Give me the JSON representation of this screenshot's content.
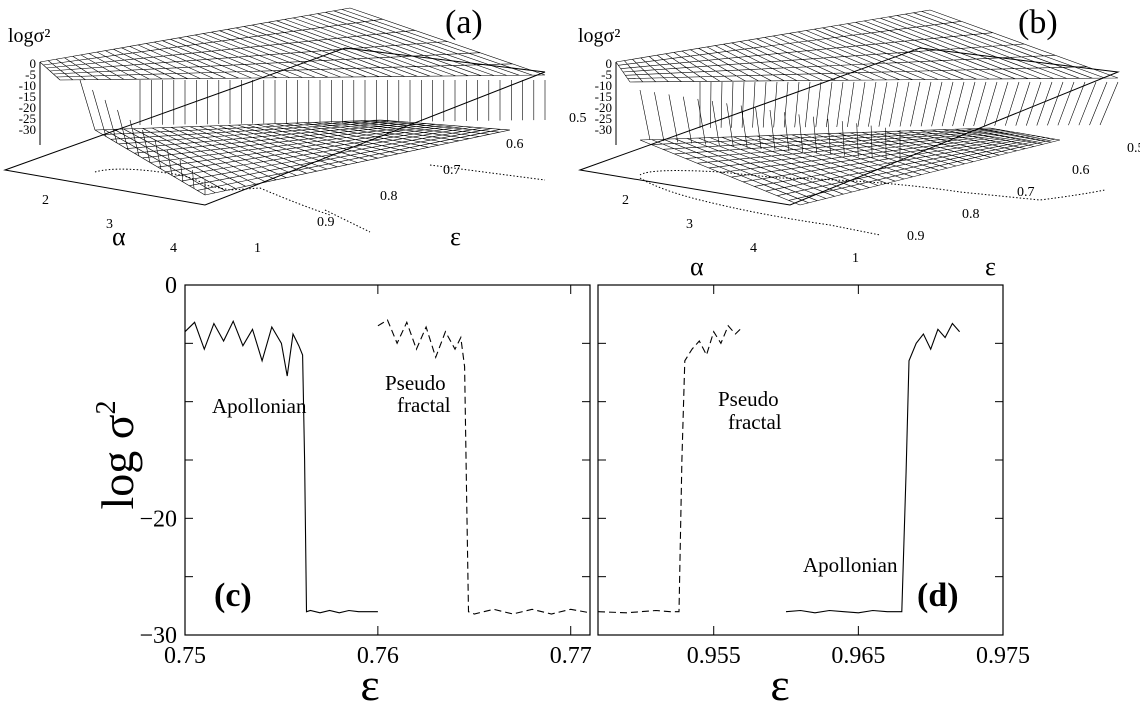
{
  "panels_3d": [
    {
      "panel_label": "(a)",
      "zlabel": "logσ²",
      "z_ticks": [
        "0",
        "-5",
        "-10",
        "-15",
        "-20",
        "-25",
        "-30"
      ],
      "alpha_label": "α",
      "alpha_ticks": [
        "2",
        "3",
        "4"
      ],
      "eps_label": "ε",
      "eps_ticks": [
        "1",
        "0.9",
        "0.8",
        "0.7",
        "0.6",
        "0.5"
      ]
    },
    {
      "panel_label": "(b)",
      "zlabel": "logσ²",
      "z_ticks": [
        "0",
        "-5",
        "-10",
        "-15",
        "-20",
        "-25",
        "-30"
      ],
      "alpha_label": "α",
      "alpha_ticks": [
        "2",
        "3",
        "4"
      ],
      "eps_label": "ε",
      "eps_ticks": [
        "1",
        "0.9",
        "0.8",
        "0.7",
        "0.6",
        "0.5"
      ]
    }
  ],
  "chart_data": [
    {
      "type": "surface",
      "panel": "(a)",
      "zlabel": "logσ²",
      "x_label": "ε",
      "x_range": [
        0.5,
        1.0
      ],
      "y_label": "α",
      "y_range": [
        1,
        4
      ],
      "z_range": [
        -30,
        0
      ],
      "description_values": {
        "sync_level": -28,
        "desync_level": -3
      }
    },
    {
      "type": "surface",
      "panel": "(b)",
      "zlabel": "logσ²",
      "x_label": "ε",
      "x_range": [
        0.5,
        1.0
      ],
      "y_label": "α",
      "y_range": [
        1,
        4
      ],
      "z_range": [
        -30,
        0
      ],
      "description_values": {
        "sync_level": -28,
        "desync_level": -3
      }
    },
    {
      "type": "line",
      "panel": "(c)",
      "ylabel": "log σ²",
      "xlabel": "ε",
      "xlim": [
        0.75,
        0.771
      ],
      "ylim": [
        -30,
        0
      ],
      "x_ticks": [
        "0.75",
        "0.76",
        "0.77"
      ],
      "y_ticks": [
        "0",
        "-20",
        "-30"
      ],
      "y_tick_values": [
        0,
        -20,
        -30
      ],
      "x_tick_values": [
        0.75,
        0.76,
        0.77
      ],
      "annotations": [
        "Apollonian",
        "Pseudo fractal"
      ],
      "series": [
        {
          "label": "Apollonian",
          "style": "solid",
          "x": [
            0.75,
            0.7505,
            0.751,
            0.7515,
            0.752,
            0.7525,
            0.753,
            0.7535,
            0.754,
            0.7545,
            0.755,
            0.7553,
            0.7556,
            0.7559,
            0.7561,
            0.7562,
            0.7563,
            0.7565,
            0.757,
            0.7575,
            0.758,
            0.7585,
            0.759,
            0.76
          ],
          "y": [
            -4.0,
            -3.2,
            -5.5,
            -3.3,
            -4.8,
            -3.1,
            -5.2,
            -3.8,
            -6.5,
            -3.6,
            -5.0,
            -7.8,
            -4.2,
            -5.2,
            -6.0,
            -15.0,
            -28.0,
            -27.9,
            -28.1,
            -27.9,
            -28.1,
            -27.9,
            -28.0,
            -28.0
          ]
        },
        {
          "label": "Pseudo fractal",
          "style": "dashed",
          "x": [
            0.76,
            0.7605,
            0.761,
            0.7615,
            0.762,
            0.7625,
            0.763,
            0.7635,
            0.764,
            0.7643,
            0.7645,
            0.7646,
            0.7647,
            0.765,
            0.766,
            0.767,
            0.768,
            0.769,
            0.77,
            0.771
          ],
          "y": [
            -3.5,
            -3.0,
            -5.0,
            -3.2,
            -5.5,
            -3.6,
            -6.2,
            -4.0,
            -5.5,
            -4.5,
            -7.0,
            -18.0,
            -28.0,
            -28.2,
            -27.8,
            -28.2,
            -27.8,
            -28.2,
            -27.8,
            -28.1
          ]
        }
      ]
    },
    {
      "type": "line",
      "panel": "(d)",
      "xlabel": "ε",
      "xlim": [
        0.947,
        0.975
      ],
      "ylim": [
        -30,
        0
      ],
      "x_ticks": [
        "0.955",
        "0.965",
        "0.975"
      ],
      "x_tick_values": [
        0.955,
        0.965,
        0.975
      ],
      "annotations": [
        "Pseudo fractal",
        "Apollonian"
      ],
      "series": [
        {
          "label": "Pseudo fractal",
          "style": "dashed",
          "x": [
            0.947,
            0.949,
            0.951,
            0.952,
            0.9526,
            0.9528,
            0.953,
            0.9535,
            0.954,
            0.9545,
            0.955,
            0.9555,
            0.956,
            0.9565,
            0.957
          ],
          "y": [
            -28.0,
            -28.1,
            -27.9,
            -28.0,
            -28.0,
            -15.0,
            -6.5,
            -5.5,
            -4.8,
            -6.0,
            -4.0,
            -5.0,
            -3.5,
            -4.2,
            -3.6
          ]
        },
        {
          "label": "Apollonian",
          "style": "solid",
          "x": [
            0.96,
            0.961,
            0.962,
            0.963,
            0.964,
            0.965,
            0.966,
            0.967,
            0.968,
            0.9683,
            0.9685,
            0.969,
            0.9695,
            0.97,
            0.9705,
            0.971,
            0.9715,
            0.972
          ],
          "y": [
            -28.0,
            -27.9,
            -28.1,
            -27.9,
            -28.0,
            -28.1,
            -27.9,
            -28.0,
            -28.0,
            -16.0,
            -6.5,
            -5.0,
            -4.2,
            -5.5,
            -3.8,
            -4.5,
            -3.3,
            -4.0
          ]
        }
      ]
    }
  ],
  "panel_c_label": "(c)",
  "panel_d_label": "(d)",
  "ylabel_c": "log σ",
  "ylabel_c_exp": "2",
  "xlabel_c": "ε",
  "xlabel_d": "ε",
  "annot_c_apollonian": "Apollonian",
  "annot_c_pseudo_1": "Pseudo",
  "annot_c_pseudo_2": "fractal",
  "annot_d_pseudo_1": "Pseudo",
  "annot_d_pseudo_2": "fractal",
  "annot_d_apollonian": "Apollonian"
}
